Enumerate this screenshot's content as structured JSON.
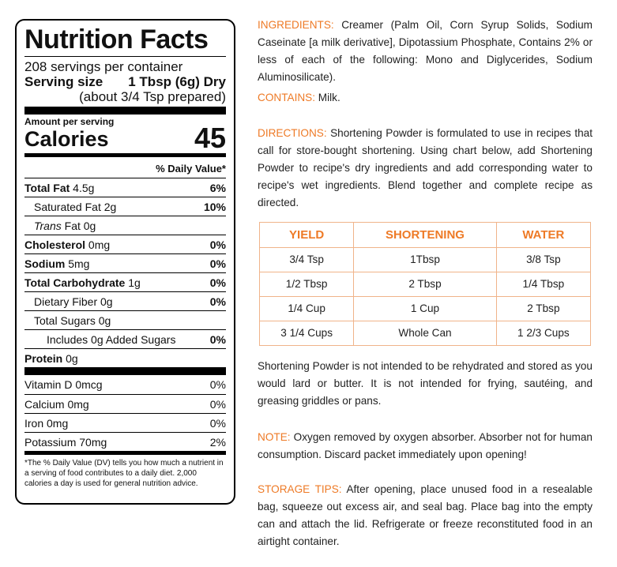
{
  "nutrition": {
    "title": "Nutrition Facts",
    "servings": "208 servings per container",
    "serving_size_label": "Serving size",
    "serving_size_value": "1 Tbsp (6g) Dry",
    "serving_size_sub": "(about 3/4 Tsp prepared)",
    "amount_per_serving": "Amount per serving",
    "calories_label": "Calories",
    "calories_value": "45",
    "dv_header": "% Daily Value*",
    "rows": [
      {
        "bold": "Total Fat",
        "text": " 4.5g",
        "pct": "6%"
      },
      {
        "bold": "",
        "text": "Saturated Fat 2g",
        "pct": "10%"
      },
      {
        "bold": "",
        "italic": "Trans",
        "text": " Fat 0g",
        "pct": ""
      },
      {
        "bold": "Cholesterol",
        "text": " 0mg",
        "pct": "0%"
      },
      {
        "bold": "Sodium",
        "text": " 5mg",
        "pct": "0%"
      },
      {
        "bold": "Total Carbohydrate",
        "text": " 1g",
        "pct": "0%"
      },
      {
        "bold": "",
        "text": "Dietary Fiber 0g",
        "pct": "0%"
      },
      {
        "bold": "",
        "text": "Total Sugars 0g",
        "pct": ""
      },
      {
        "bold": "",
        "text": "Includes 0g Added Sugars",
        "pct": "0%"
      },
      {
        "bold": "Protein",
        "text": " 0g",
        "pct": ""
      }
    ],
    "vitamins": [
      {
        "text": "Vitamin D 0mcg",
        "pct": "0%"
      },
      {
        "text": "Calcium 0mg",
        "pct": "0%"
      },
      {
        "text": "Iron 0mg",
        "pct": "0%"
      },
      {
        "text": "Potassium 70mg",
        "pct": "2%"
      }
    ],
    "footnote": "*The % Daily Value (DV) tells you how much a nutrient in a serving of food contributes to a daily diet. 2,000 calories a day is used for general nutrition advice."
  },
  "ingredients": {
    "head": "INGREDIENTS:",
    "text": " Creamer (Palm Oil, Corn Syrup Solids, Sodium Caseinate [a milk derivative], Dipotassium Phosphate, Contains 2% or less of each of the following: Mono and Diglycerides, Sodium Aluminosilicate)."
  },
  "contains": {
    "head": "CONTAINS:",
    "text": " Milk."
  },
  "directions": {
    "head": "DIRECTIONS:",
    "text": " Shortening Powder is formulated to use in recipes that call for store-bought shortening. Using chart below, add Shortening Powder to recipe's dry ingredients and add corresponding water to recipe's wet ingredients. Blend together and complete recipe as directed."
  },
  "yield_table": {
    "headers": [
      "YIELD",
      "SHORTENING",
      "WATER"
    ],
    "rows": [
      [
        "3/4 Tsp",
        "1Tbsp",
        "3/8 Tsp"
      ],
      [
        "1/2 Tbsp",
        "2 Tbsp",
        "1/4 Tbsp"
      ],
      [
        "1/4 Cup",
        "1 Cup",
        "2 Tbsp"
      ],
      [
        "3 1/4 Cups",
        "Whole Can",
        "1 2/3 Cups"
      ]
    ]
  },
  "shortening_note": "Shortening Powder is not intended to be rehydrated and stored as you would lard or butter. It is not intended for frying, sautéing, and greasing griddles or pans.",
  "note": {
    "head": "NOTE:",
    "text": " Oxygen removed by oxygen absorber. Absorber not for human consumption. Discard packet immediately upon opening!"
  },
  "storage": {
    "head": "STORAGE TIPS:",
    "text": " After opening, place unused food in a resealable bag, squeeze out excess air, and seal bag. Place bag into the empty can and attach the lid. Refrigerate or freeze reconstituted food in an airtight container."
  },
  "colors": {
    "accent": "#ee7a26",
    "table_border": "#f0b48a"
  }
}
